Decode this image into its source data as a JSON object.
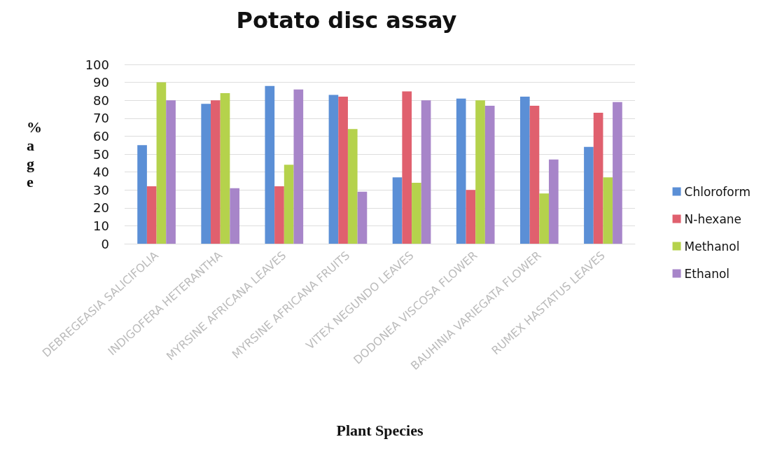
{
  "chart_data": {
    "type": "bar",
    "title": "Potato disc assay",
    "xlabel": "Plant Species",
    "ylabel": "%age",
    "categories": [
      "DEBREGEASIA SALICIFOLIA",
      "INDIGOFERA HETERANTHA",
      "MYRSINE AFRICANA LEAVES",
      "MYRSINE AFRICANA FRUITS",
      "VITEX NEGUNDO LEAVES",
      "DODONEA VISCOSA FLOWER",
      "BAUHINIA VARIEGATA FLOWER",
      "RUMEX HASTATUS LEAVES"
    ],
    "series": [
      {
        "name": "Chloroform",
        "color": "#5b8fd6",
        "values": [
          55,
          78,
          88,
          83,
          37,
          81,
          82,
          54
        ]
      },
      {
        "name": "N-hexane",
        "color": "#e0606e",
        "values": [
          32,
          80,
          32,
          82,
          85,
          30,
          77,
          73
        ]
      },
      {
        "name": "Methanol",
        "color": "#b5d24c",
        "values": [
          90,
          84,
          44,
          64,
          34,
          80,
          28,
          37
        ]
      },
      {
        "name": "Ethanol",
        "color": "#a785c9",
        "values": [
          80,
          31,
          86,
          29,
          80,
          77,
          47,
          79
        ]
      }
    ],
    "ylim": [
      0,
      100
    ],
    "yticks": [
      0,
      10,
      20,
      30,
      40,
      50,
      60,
      70,
      80,
      90,
      100
    ],
    "grid": "y",
    "legend": "right"
  }
}
